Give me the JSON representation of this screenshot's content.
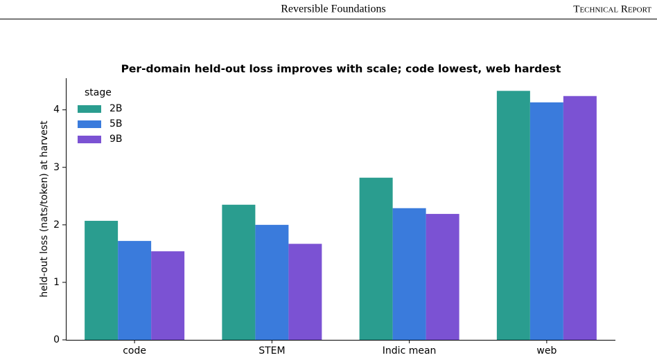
{
  "header": {
    "title": "Reversible Foundations",
    "label": "Technical Report"
  },
  "chart_data": {
    "type": "bar",
    "title": "Per-domain held-out loss improves with scale; code lowest, web hardest",
    "y_label": "held-out loss (nats/token) at harvest",
    "categories": [
      "code",
      "STEM",
      "Indic mean",
      "web"
    ],
    "series": [
      {
        "name": "2B",
        "color": "#2a9d8f",
        "values": [
          2.07,
          2.35,
          2.82,
          4.33
        ]
      },
      {
        "name": "5B",
        "color": "#3a7bdc",
        "values": [
          1.72,
          2.0,
          2.29,
          4.13
        ]
      },
      {
        "name": "9B",
        "color": "#7b52d3",
        "values": [
          1.54,
          1.67,
          2.19,
          4.24
        ]
      }
    ],
    "legend_title": "stage",
    "legend": "upper left",
    "ylim": [
      0,
      4.55
    ],
    "yticks": [
      0,
      1,
      2,
      3,
      4
    ],
    "grid": false
  }
}
